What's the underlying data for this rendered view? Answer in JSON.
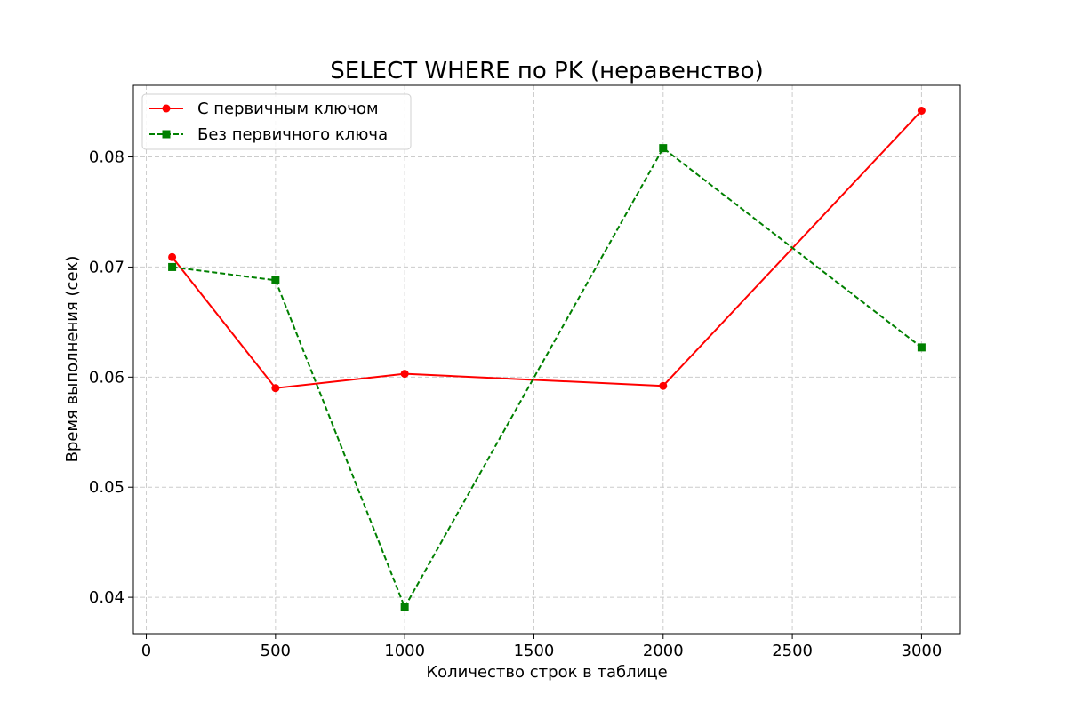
{
  "chart_data": {
    "type": "line",
    "title": "SELECT WHERE по PK (неравенство)",
    "xlabel": "Количество строк в таблице",
    "ylabel": "Время выполнения (сек)",
    "x": [
      100,
      500,
      1000,
      2000,
      3000
    ],
    "xlim": [
      -50,
      3150
    ],
    "ylim": [
      0.0367,
      0.0865
    ],
    "xticks": [
      0,
      500,
      1000,
      1500,
      2000,
      2500,
      3000
    ],
    "yticks": [
      0.04,
      0.05,
      0.06,
      0.07,
      0.08
    ],
    "xtick_labels": [
      "0",
      "500",
      "1000",
      "1500",
      "2000",
      "2500",
      "3000"
    ],
    "ytick_labels": [
      "0.04",
      "0.05",
      "0.06",
      "0.07",
      "0.08"
    ],
    "grid": true,
    "legend_position": "top-left",
    "series": [
      {
        "name": "С первичным ключом",
        "values": [
          0.0709,
          0.059,
          0.0603,
          0.0592,
          0.0842
        ],
        "color": "#ff0000",
        "marker": "circle",
        "linestyle": "solid"
      },
      {
        "name": "Без первичного ключа",
        "values": [
          0.07,
          0.0688,
          0.0391,
          0.0808,
          0.0627
        ],
        "color": "#008000",
        "marker": "square",
        "linestyle": "dashed"
      }
    ]
  }
}
